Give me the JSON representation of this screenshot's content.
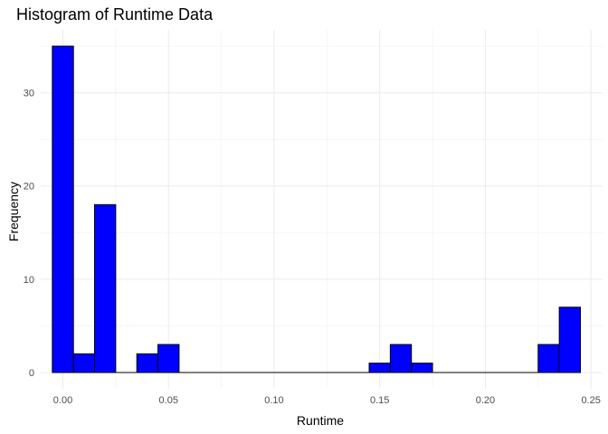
{
  "chart_data": {
    "type": "bar",
    "title": "Histogram of Runtime Data",
    "xlabel": "Runtime",
    "ylabel": "Frequency",
    "bin_width": 0.01,
    "bars": [
      {
        "x": 0.0,
        "count": 35
      },
      {
        "x": 0.01,
        "count": 2
      },
      {
        "x": 0.02,
        "count": 18
      },
      {
        "x": 0.04,
        "count": 2
      },
      {
        "x": 0.05,
        "count": 3
      },
      {
        "x": 0.15,
        "count": 1
      },
      {
        "x": 0.16,
        "count": 3
      },
      {
        "x": 0.17,
        "count": 1
      },
      {
        "x": 0.23,
        "count": 3
      },
      {
        "x": 0.24,
        "count": 7
      }
    ],
    "x_ticks": [
      0.0,
      0.05,
      0.1,
      0.15,
      0.2,
      0.25
    ],
    "x_tick_labels": [
      "0.00",
      "0.05",
      "0.10",
      "0.15",
      "0.20",
      "0.25"
    ],
    "y_ticks": [
      0,
      10,
      20,
      30
    ],
    "y_tick_labels": [
      "0",
      "10",
      "20",
      "30"
    ],
    "xlim": [
      -0.0105,
      0.2555
    ],
    "ylim": [
      -1.75,
      36.75
    ],
    "fill_color": "#0000ff",
    "outline_color": "#000000",
    "grid": true
  }
}
